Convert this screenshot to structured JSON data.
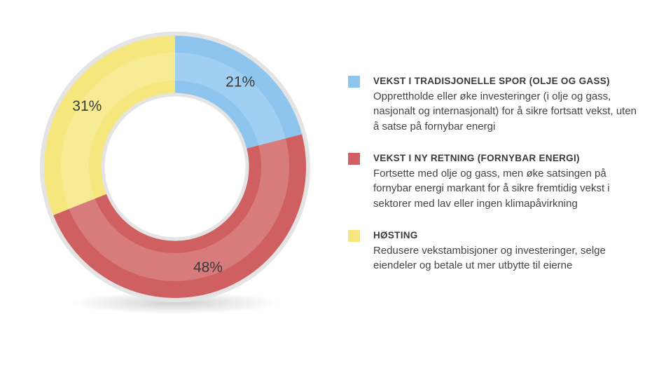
{
  "chart_data": {
    "type": "pie",
    "donut": true,
    "categories": [
      "VEKST I TRADISJONELLE SPOR (OLJE OG GASS)",
      "VEKST I NY RETNING (FORNYBAR ENERGI)",
      "HØSTING"
    ],
    "descriptions": [
      "Opprettholde eller øke investeringer (i olje og gass, nasjonalt og internasjonalt) for å sikre fortsatt vekst, uten å satse på fornybar energi",
      "Fortsette med olje og gass, men øke satsingen på fornybar energi markant for å sikre fremtidig vekst i sektorer med lav eller ingen klimapåvirkning",
      "Redusere vekstambisjoner og investeringer, selge eiendeler og betale ut mer utbytte til eierne"
    ],
    "values": [
      21,
      48,
      31
    ],
    "value_labels": [
      "21%",
      "48%",
      "31%"
    ],
    "colors": [
      "#8dc5ee",
      "#cf5f60",
      "#f6e67e"
    ]
  }
}
